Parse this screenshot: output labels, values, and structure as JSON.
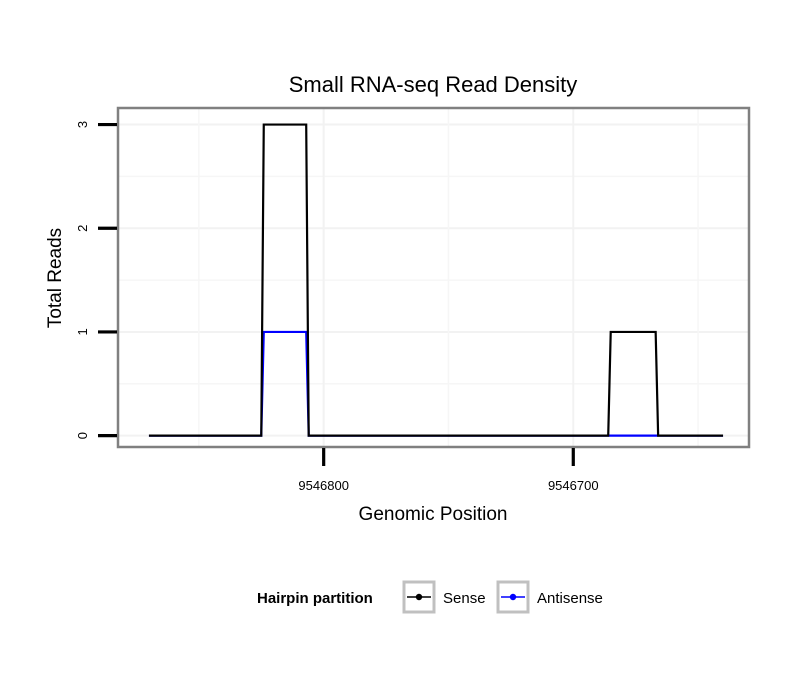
{
  "chart_data": {
    "type": "line",
    "title": "Small RNA-seq Read Density",
    "xlabel": "Genomic Position",
    "ylabel": "Total Reads",
    "x_reversed": true,
    "xlim": [
      9546882,
      9546630
    ],
    "ylim": [
      -0.1,
      3.15
    ],
    "x_ticks": [
      9546800,
      9546700
    ],
    "x_tick_labels": [
      "9546800",
      "9546700"
    ],
    "y_ticks": [
      0,
      1,
      2,
      3
    ],
    "y_tick_labels": [
      "0",
      "1",
      "2",
      "3"
    ],
    "grid": true,
    "legend": {
      "title": "Hairpin partition",
      "position": "bottom"
    },
    "series": [
      {
        "name": "Sense",
        "color": "#000000",
        "x": [
          9546870,
          9546825,
          9546824,
          9546807,
          9546806,
          9546686,
          9546685,
          9546667,
          9546666,
          9546640
        ],
        "y": [
          0,
          0,
          3,
          3,
          0,
          0,
          1,
          1,
          0,
          0
        ]
      },
      {
        "name": "Antisense",
        "color": "#0000ff",
        "x": [
          9546870,
          9546825,
          9546824,
          9546807,
          9546806,
          9546640
        ],
        "y": [
          0,
          0,
          1,
          1,
          0,
          0
        ]
      }
    ]
  }
}
